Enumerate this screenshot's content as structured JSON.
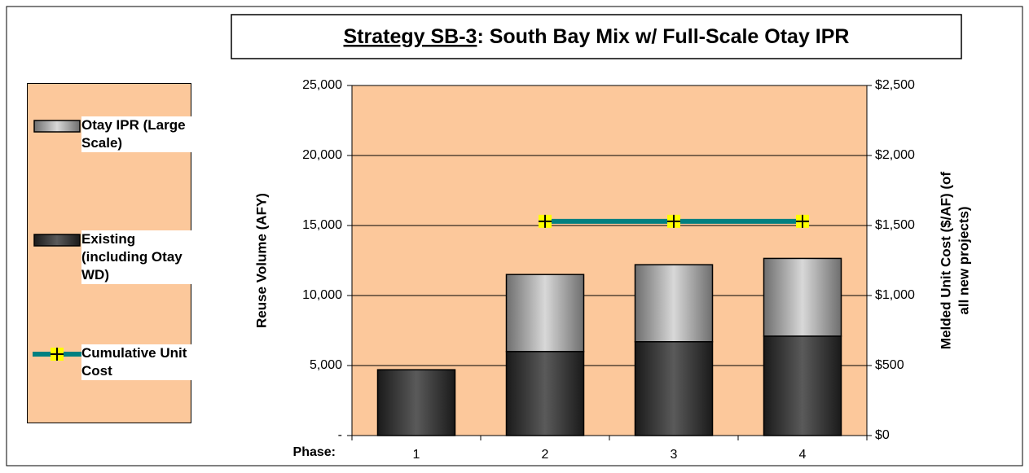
{
  "chart_data": {
    "type": "stacked-bar-line",
    "title": [
      "Strategy SB-3",
      ": South Bay Mix w/ Full-Scale Otay IPR"
    ],
    "x_label": "Phase:",
    "y_label": "Reuse Volume (AFY)",
    "y2_label": [
      "Melded Unit Cost ($/AF) (of",
      "all new projects)"
    ],
    "categories": [
      "1",
      "2",
      "3",
      "4"
    ],
    "ylim": [
      0,
      25000
    ],
    "yticks": [
      {
        "value": 0,
        "label": "-"
      },
      {
        "value": 5000,
        "label": "5,000"
      },
      {
        "value": 10000,
        "label": "10,000"
      },
      {
        "value": 15000,
        "label": "15,000"
      },
      {
        "value": 20000,
        "label": "20,000"
      },
      {
        "value": 25000,
        "label": "25,000"
      }
    ],
    "y2lim": [
      0,
      2500
    ],
    "y2ticks": [
      {
        "value": 0,
        "label": "$0"
      },
      {
        "value": 500,
        "label": "$500"
      },
      {
        "value": 1000,
        "label": "$1,000"
      },
      {
        "value": 1500,
        "label": "$1,500"
      },
      {
        "value": 2000,
        "label": "$2,000"
      },
      {
        "value": 2500,
        "label": "$2,500"
      }
    ],
    "series": [
      {
        "name": "Existing (including Otay WD)",
        "color": "#333333",
        "kind": "bar",
        "values": [
          4700,
          6000,
          6700,
          7100
        ]
      },
      {
        "name": "Otay IPR (Large Scale)",
        "color": "#b0b0b0",
        "kind": "bar",
        "values": [
          null,
          5500,
          5500,
          5550
        ]
      },
      {
        "name": "Cumulative Unit Cost",
        "color": "#008080",
        "kind": "line",
        "axis": "y2",
        "values": [
          null,
          1530,
          1530,
          1530
        ]
      }
    ],
    "legend_order": [
      1,
      0,
      2
    ],
    "plot_background": "#fcc89b"
  }
}
